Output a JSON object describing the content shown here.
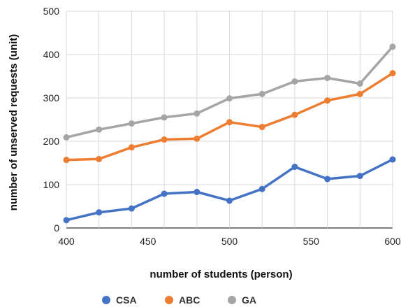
{
  "chart_data": {
    "type": "line",
    "title": "",
    "xlabel": "number of students (person)",
    "ylabel": "number of unserved requests (unit)",
    "x": [
      400,
      420,
      440,
      460,
      480,
      500,
      520,
      540,
      560,
      580,
      600
    ],
    "xlim": [
      400,
      600
    ],
    "ylim": [
      0,
      500
    ],
    "x_ticks": [
      400,
      450,
      500,
      550,
      600
    ],
    "y_ticks": [
      0,
      100,
      200,
      300,
      400,
      500
    ],
    "grid": true,
    "legend_position": "bottom",
    "series": [
      {
        "name": "CSA",
        "color": "#4472c4",
        "values": [
          18,
          36,
          45,
          79,
          83,
          63,
          90,
          141,
          113,
          120,
          158
        ]
      },
      {
        "name": "ABC",
        "color": "#ed7d31",
        "values": [
          157,
          159,
          186,
          204,
          206,
          244,
          233,
          261,
          294,
          309,
          357
        ]
      },
      {
        "name": "GA",
        "color": "#a5a5a5",
        "values": [
          209,
          227,
          241,
          255,
          264,
          299,
          309,
          338,
          346,
          333,
          418
        ]
      }
    ]
  }
}
